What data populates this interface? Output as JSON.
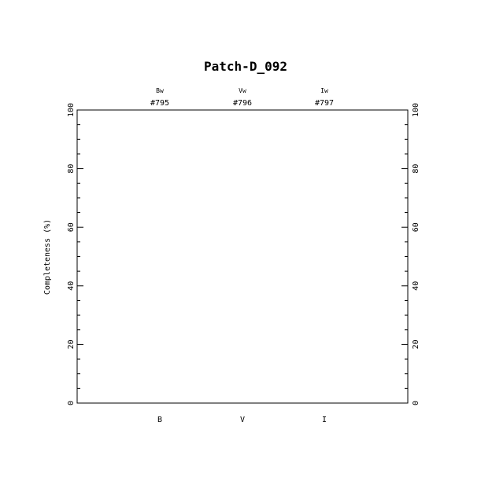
{
  "chart_data": {
    "type": "bar",
    "title": "Patch-D_092",
    "xlabel": "",
    "ylabel": "Completeness (%)",
    "ylim": [
      0,
      100
    ],
    "yticks": [
      "0",
      "20",
      "40",
      "60",
      "80",
      "100"
    ],
    "yminor_step": 5,
    "categories": [
      "B",
      "V",
      "I"
    ],
    "top_labels": [
      {
        "filter": "Bw",
        "id": "#795"
      },
      {
        "filter": "Vw",
        "id": "#796"
      },
      {
        "filter": "Iw",
        "id": "#797"
      }
    ],
    "series": [],
    "grid": false,
    "legend": "none"
  }
}
